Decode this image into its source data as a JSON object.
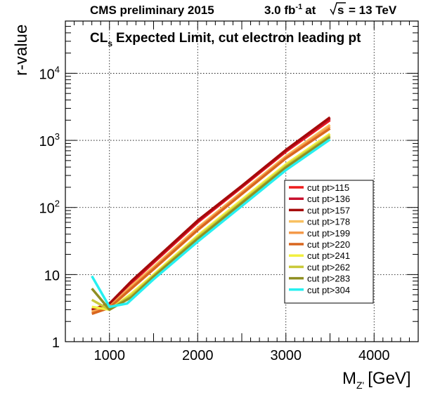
{
  "header": {
    "left": "CMS preliminary 2015",
    "lumi_value": "3.0 fb",
    "lumi_exp": "-1",
    "lumi_at": "at",
    "sqrt_s": "s",
    "energy": "= 13 TeV"
  },
  "chart_data": {
    "type": "line",
    "title_main": "CL",
    "title_sub": "s",
    "title_rest": "Expected Limit, cut electron leading pt",
    "xlabel_main": "M",
    "xlabel_sub": "Z'",
    "xlabel_unit": "[GeV]",
    "ylabel": "r-value",
    "xlim": [
      500,
      4500
    ],
    "ylim": [
      1,
      60000
    ],
    "y_scale": "log",
    "grid": true,
    "legend_position": "right-middle",
    "x_ticks": [
      {
        "value": 1000,
        "label": "1000"
      },
      {
        "value": 2000,
        "label": "2000"
      },
      {
        "value": 3000,
        "label": "3000"
      },
      {
        "value": 4000,
        "label": "4000"
      }
    ],
    "y_ticks": [
      {
        "value": 1,
        "base": "1",
        "exp": ""
      },
      {
        "value": 10,
        "base": "10",
        "exp": ""
      },
      {
        "value": 100,
        "base": "10",
        "exp": "2"
      },
      {
        "value": 1000,
        "base": "10",
        "exp": "3"
      },
      {
        "value": 10000,
        "base": "10",
        "exp": "4"
      }
    ],
    "series": [
      {
        "name": "cut pt>115",
        "color": "#ee1c1c",
        "x": [
          800,
          1000,
          1250,
          1500,
          2000,
          2500,
          3000,
          3500
        ],
        "y": [
          2.9,
          3.5,
          7.5,
          15,
          60,
          200,
          680,
          2000
        ]
      },
      {
        "name": "cut pt>136",
        "color": "#c8102e",
        "x": [
          800,
          1000,
          1250,
          1500,
          2000,
          2500,
          3000,
          3500
        ],
        "y": [
          3.0,
          3.6,
          7.8,
          15.5,
          62,
          205,
          700,
          2100
        ]
      },
      {
        "name": "cut pt>157",
        "color": "#a50a0a",
        "x": [
          800,
          1000,
          1250,
          1500,
          2000,
          2500,
          3000,
          3500
        ],
        "y": [
          3.0,
          3.7,
          8.0,
          16,
          64,
          210,
          720,
          2200
        ]
      },
      {
        "name": "cut pt>178",
        "color": "#f8c060",
        "x": [
          800,
          1000,
          1250,
          1500,
          2000,
          2500,
          3000,
          3500
        ],
        "y": [
          2.8,
          3.3,
          6.8,
          13,
          50,
          170,
          580,
          1700
        ]
      },
      {
        "name": "cut pt>199",
        "color": "#f49a4a",
        "x": [
          800,
          1000,
          1250,
          1500,
          2000,
          2500,
          3000,
          3500
        ],
        "y": [
          2.7,
          3.3,
          6.5,
          12.5,
          48,
          165,
          560,
          1600
        ]
      },
      {
        "name": "cut pt>220",
        "color": "#d9661e",
        "x": [
          800,
          1000,
          1250,
          1500,
          2000,
          2500,
          3000,
          3500
        ],
        "y": [
          2.6,
          3.2,
          6.2,
          12,
          46,
          158,
          540,
          1500
        ]
      },
      {
        "name": "cut pt>241",
        "color": "#f2f040",
        "x": [
          800,
          1000,
          1250,
          1500,
          2000,
          2500,
          3000,
          3500
        ],
        "y": [
          3.3,
          3.0,
          5.2,
          10,
          38,
          130,
          440,
          1250
        ]
      },
      {
        "name": "cut pt>262",
        "color": "#c9c93a",
        "x": [
          800,
          1000,
          1250,
          1500,
          2000,
          2500,
          3000,
          3500
        ],
        "y": [
          4.2,
          3.0,
          4.9,
          9.6,
          36,
          122,
          415,
          1180
        ]
      },
      {
        "name": "cut pt>283",
        "color": "#8f8f22",
        "x": [
          800,
          1000,
          1250,
          1500,
          2000,
          2500,
          3000,
          3500
        ],
        "y": [
          6.2,
          3.0,
          4.6,
          9.3,
          34,
          116,
          395,
          1120
        ]
      },
      {
        "name": "cut pt>304",
        "color": "#26f0f0",
        "x": [
          800,
          1000,
          1200,
          1500,
          2000,
          2500,
          3000,
          3500
        ],
        "y": [
          9.5,
          3.3,
          3.7,
          8.5,
          31,
          105,
          360,
          1030
        ]
      }
    ]
  }
}
